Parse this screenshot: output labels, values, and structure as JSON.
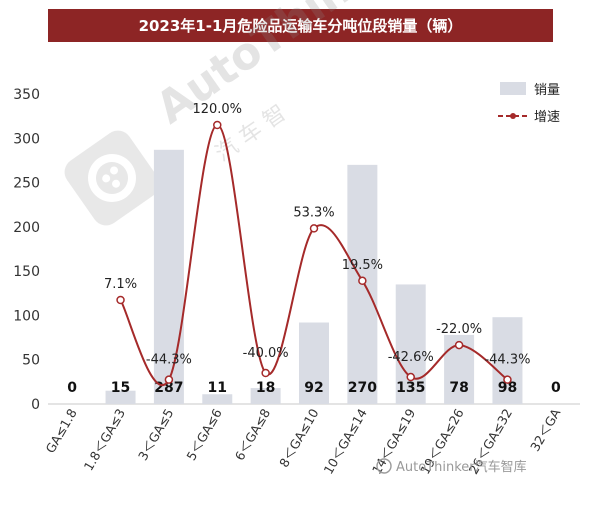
{
  "chart_data": {
    "type": "bar+line",
    "title": "2023年1-1月危险品运输车分吨位段销量（辆）",
    "categories": [
      "GA≤1.8",
      "1.8＜GA≤3",
      "3＜GA≤5",
      "5＜GA≤6",
      "6＜GA≤8",
      "8＜GA≤10",
      "10＜GA≤14",
      "14＜GA≤19",
      "19＜GA≤26",
      "26＜GA≤32",
      "32＜GA"
    ],
    "series": [
      {
        "name": "销量",
        "type": "bar",
        "values": [
          0,
          15,
          287,
          11,
          18,
          92,
          270,
          135,
          78,
          98,
          0
        ],
        "labels": [
          "0",
          "15",
          "287",
          "11",
          "18",
          "92",
          "270",
          "135",
          "78",
          "98",
          "0"
        ]
      },
      {
        "name": "增速",
        "type": "line",
        "values": [
          null,
          7.1,
          -44.3,
          120.0,
          -40.0,
          53.3,
          19.5,
          -42.6,
          -22.0,
          -44.3,
          null
        ],
        "labels": [
          "",
          "7.1%",
          "-44.3%",
          "120.0%",
          "-40.0%",
          "53.3%",
          "19.5%",
          "-42.6%",
          "-22.0%",
          "-44.3%",
          ""
        ]
      }
    ],
    "y_ticks": [
      "0",
      "50",
      "100",
      "150",
      "200",
      "250",
      "300",
      "350"
    ],
    "ylim": [
      0,
      350
    ],
    "legend_position": "top-right",
    "grid": false,
    "colors": {
      "bar": "#d9dce4",
      "line": "#a52a2a",
      "title_bg": "#8d2525"
    }
  },
  "watermark": {
    "brand": "AutoThinker汽车智库",
    "logo_text": "AutoThinker",
    "cn_text": "汽 车 智"
  }
}
